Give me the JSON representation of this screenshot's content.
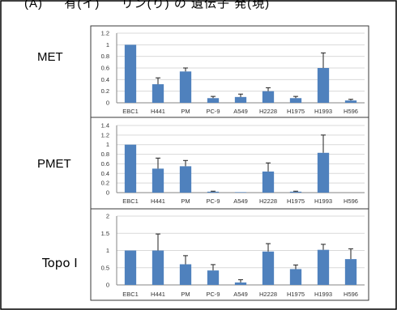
{
  "page_top_text": "(A) 　 有(イ) 　 リン(り) の 遺伝子 発(現)",
  "row_labels": {
    "met": "MET",
    "pmet": "PMET",
    "topo": "Topo I"
  },
  "colors": {
    "bar": "#4f81bd",
    "grid": "#d9d9d9",
    "axis": "#868686",
    "frame": "#3a3a3a"
  },
  "chart_data": [
    {
      "type": "bar",
      "title": "",
      "ylabel": "",
      "categories": [
        "EBC1",
        "H441",
        "PM",
        "PC-9",
        "A549",
        "H2228",
        "H1975",
        "H1993",
        "H596"
      ],
      "values": [
        1.0,
        0.32,
        0.54,
        0.08,
        0.1,
        0.2,
        0.08,
        0.6,
        0.04
      ],
      "errors": [
        0.0,
        0.11,
        0.06,
        0.03,
        0.05,
        0.06,
        0.03,
        0.26,
        0.02
      ],
      "ylim": [
        0,
        1.2
      ],
      "yticks": [
        0,
        0.2,
        0.4,
        0.6,
        0.8,
        1,
        1.2
      ],
      "grid": true,
      "legend": "none"
    },
    {
      "type": "bar",
      "title": "",
      "ylabel": "",
      "categories": [
        "EBC1",
        "H441",
        "PM",
        "PC-9",
        "A549",
        "H2228",
        "H1975",
        "H1993",
        "H596"
      ],
      "values": [
        1.0,
        0.5,
        0.55,
        0.02,
        0.01,
        0.44,
        0.02,
        0.83,
        0.0
      ],
      "errors": [
        0.0,
        0.22,
        0.12,
        0.01,
        0.0,
        0.18,
        0.01,
        0.37,
        0.0
      ],
      "ylim": [
        0,
        1.4
      ],
      "yticks": [
        0,
        0.2,
        0.4,
        0.6,
        0.8,
        1,
        1.2,
        1.4
      ],
      "grid": true,
      "legend": "none"
    },
    {
      "type": "bar",
      "title": "",
      "ylabel": "",
      "categories": [
        "EBC1",
        "H441",
        "PM",
        "PC-9",
        "A549",
        "H2228",
        "H1975",
        "H1993",
        "H596"
      ],
      "values": [
        1.0,
        1.0,
        0.6,
        0.42,
        0.07,
        0.97,
        0.46,
        1.02,
        0.75
      ],
      "errors": [
        0.0,
        0.48,
        0.25,
        0.17,
        0.08,
        0.23,
        0.12,
        0.16,
        0.3
      ],
      "ylim": [
        0,
        2
      ],
      "yticks": [
        0,
        0.5,
        1,
        1.5,
        2
      ],
      "grid": true,
      "legend": "none"
    }
  ]
}
